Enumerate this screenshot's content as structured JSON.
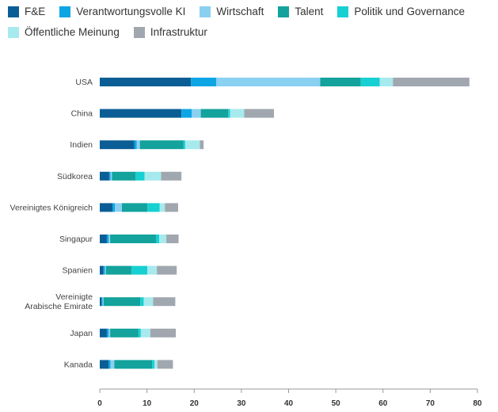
{
  "chart_data": {
    "type": "bar",
    "orientation": "horizontal",
    "stacked": true,
    "title": "",
    "xlabel": "",
    "ylabel": "",
    "xlim": [
      0,
      80
    ],
    "xticks": [
      "0",
      "10",
      "20",
      "30",
      "40",
      "50",
      "60",
      "70",
      "80"
    ],
    "legend_position": "top",
    "categories": [
      "USA",
      "China",
      "Indien",
      "Südkorea",
      "Vereinigtes Königreich",
      "Singapur",
      "Spanien",
      "Vereinigte Arabische Emirate",
      "Japan",
      "Kanada"
    ],
    "category_lines": [
      [
        "USA"
      ],
      [
        "China"
      ],
      [
        "Indien"
      ],
      [
        "Südkorea"
      ],
      [
        "Vereinigtes Königreich"
      ],
      [
        "Singapur"
      ],
      [
        "Spanien"
      ],
      [
        "Vereinigte",
        "Arabische Emirate"
      ],
      [
        "Japan"
      ],
      [
        "Kanada"
      ]
    ],
    "series": [
      {
        "name": "F&E",
        "color": "#0b5e95",
        "values": [
          19.3,
          17.3,
          7.3,
          2.0,
          2.7,
          1.5,
          0.8,
          0.4,
          1.5,
          1.9
        ]
      },
      {
        "name": "Verantwortungsvolle KI",
        "color": "#0ea5e4",
        "values": [
          5.4,
          2.2,
          0.5,
          0.3,
          0.5,
          0.4,
          0.3,
          0.2,
          0.4,
          0.4
        ]
      },
      {
        "name": "Wirtschaft",
        "color": "#8ad0f1",
        "values": [
          22.0,
          1.9,
          0.7,
          0.3,
          1.5,
          0.3,
          0.2,
          0.2,
          0.3,
          0.8
        ]
      },
      {
        "name": "Talent",
        "color": "#13a29c",
        "values": [
          8.6,
          5.8,
          9.2,
          5.0,
          5.4,
          9.7,
          5.4,
          7.8,
          6.0,
          8.0
        ]
      },
      {
        "name": "Politik und Governance",
        "color": "#16d0d2",
        "values": [
          4.0,
          0.4,
          0.4,
          1.9,
          2.6,
          0.7,
          3.4,
          0.7,
          0.5,
          0.5
        ]
      },
      {
        "name": "Öffentliche Meinung",
        "color": "#a7eaee",
        "values": [
          2.8,
          3.0,
          3.1,
          3.5,
          1.1,
          1.5,
          2.0,
          2.0,
          2.0,
          0.6
        ]
      },
      {
        "name": "Infrastruktur",
        "color": "#a1a7af",
        "values": [
          16.2,
          6.3,
          0.8,
          4.3,
          2.8,
          2.6,
          4.2,
          4.7,
          5.4,
          3.3
        ]
      }
    ]
  }
}
